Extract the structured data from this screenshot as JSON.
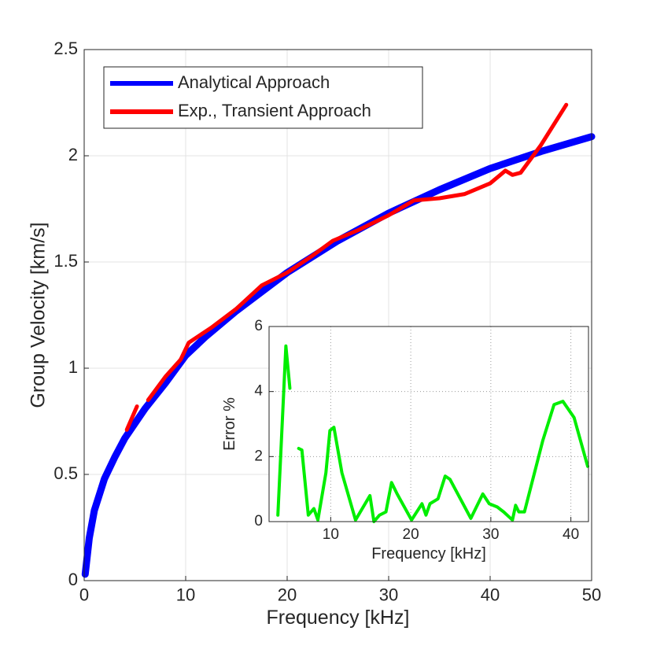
{
  "chart_data": [
    {
      "type": "line",
      "xlabel": "Frequency [kHz]",
      "ylabel": "Group Velocity [km/s]",
      "xlim": [
        0,
        50
      ],
      "ylim": [
        0,
        2.5
      ],
      "xticks": [
        0,
        10,
        20,
        30,
        40,
        50
      ],
      "yticks": [
        0,
        0.5,
        1,
        1.5,
        2,
        2.5
      ],
      "grid": true,
      "legend": "upper left",
      "series": [
        {
          "name": "Analytical Approach",
          "color": "#0000ff",
          "x": [
            0.1,
            0.5,
            1,
            2,
            3,
            4,
            5,
            6,
            8,
            10,
            12,
            15,
            20,
            25,
            30,
            35,
            40,
            45,
            50
          ],
          "values": [
            0.03,
            0.2,
            0.33,
            0.48,
            0.58,
            0.67,
            0.74,
            0.81,
            0.93,
            1.06,
            1.15,
            1.27,
            1.45,
            1.6,
            1.73,
            1.84,
            1.94,
            2.02,
            2.09
          ]
        },
        {
          "name": "Exp., Transient Approach",
          "color": "#ff0000",
          "x": [
            4.2,
            5.2,
            null,
            6.3,
            8,
            9.5,
            10.3,
            12.5,
            15,
            17.5,
            20,
            22.5,
            24.5,
            27,
            30,
            32.5,
            35,
            37.5,
            40,
            41.5,
            42.2,
            43,
            45,
            47.5
          ],
          "values": [
            0.71,
            0.82,
            null,
            0.85,
            0.96,
            1.04,
            1.12,
            1.19,
            1.28,
            1.39,
            1.45,
            1.53,
            1.6,
            1.65,
            1.72,
            1.79,
            1.8,
            1.82,
            1.87,
            1.93,
            1.91,
            1.92,
            2.05,
            2.24
          ]
        }
      ]
    },
    {
      "type": "line",
      "xlabel": "Frequency [kHz]",
      "ylabel": "Error %",
      "xlim": [
        2.3,
        42.2
      ],
      "ylim": [
        0,
        6
      ],
      "xticks": [
        10,
        20,
        30,
        40
      ],
      "yticks": [
        0,
        2,
        4,
        6
      ],
      "grid": true,
      "series": [
        {
          "color": "#00ee00",
          "x": [
            3.4,
            4.4,
            4.9,
            null,
            6.0,
            6.4,
            7.2,
            7.9,
            8.4,
            9.4,
            9.9,
            10.4,
            11.4,
            13.1,
            14.9,
            15.4,
            16.1,
            16.9,
            17.6,
            18.3,
            20.1,
            21.4,
            21.9,
            22.4,
            23.4,
            24.3,
            24.9,
            27.5,
            29,
            29.8,
            30.8,
            31.6,
            32.7,
            33.1,
            33.5,
            34.2,
            36.5,
            37.9,
            39,
            40.4,
            42.1
          ],
          "values": [
            0.2,
            5.4,
            4.1,
            null,
            2.25,
            2.2,
            0.2,
            0.4,
            0.05,
            1.5,
            2.8,
            2.9,
            1.5,
            0.05,
            0.8,
            0,
            0.2,
            0.3,
            1.2,
            0.85,
            0.05,
            0.55,
            0.2,
            0.55,
            0.7,
            1.4,
            1.3,
            0.1,
            0.85,
            0.55,
            0.45,
            0.3,
            0.05,
            0.5,
            0.3,
            0.3,
            2.5,
            3.6,
            3.7,
            3.2,
            1.7
          ]
        }
      ]
    }
  ]
}
